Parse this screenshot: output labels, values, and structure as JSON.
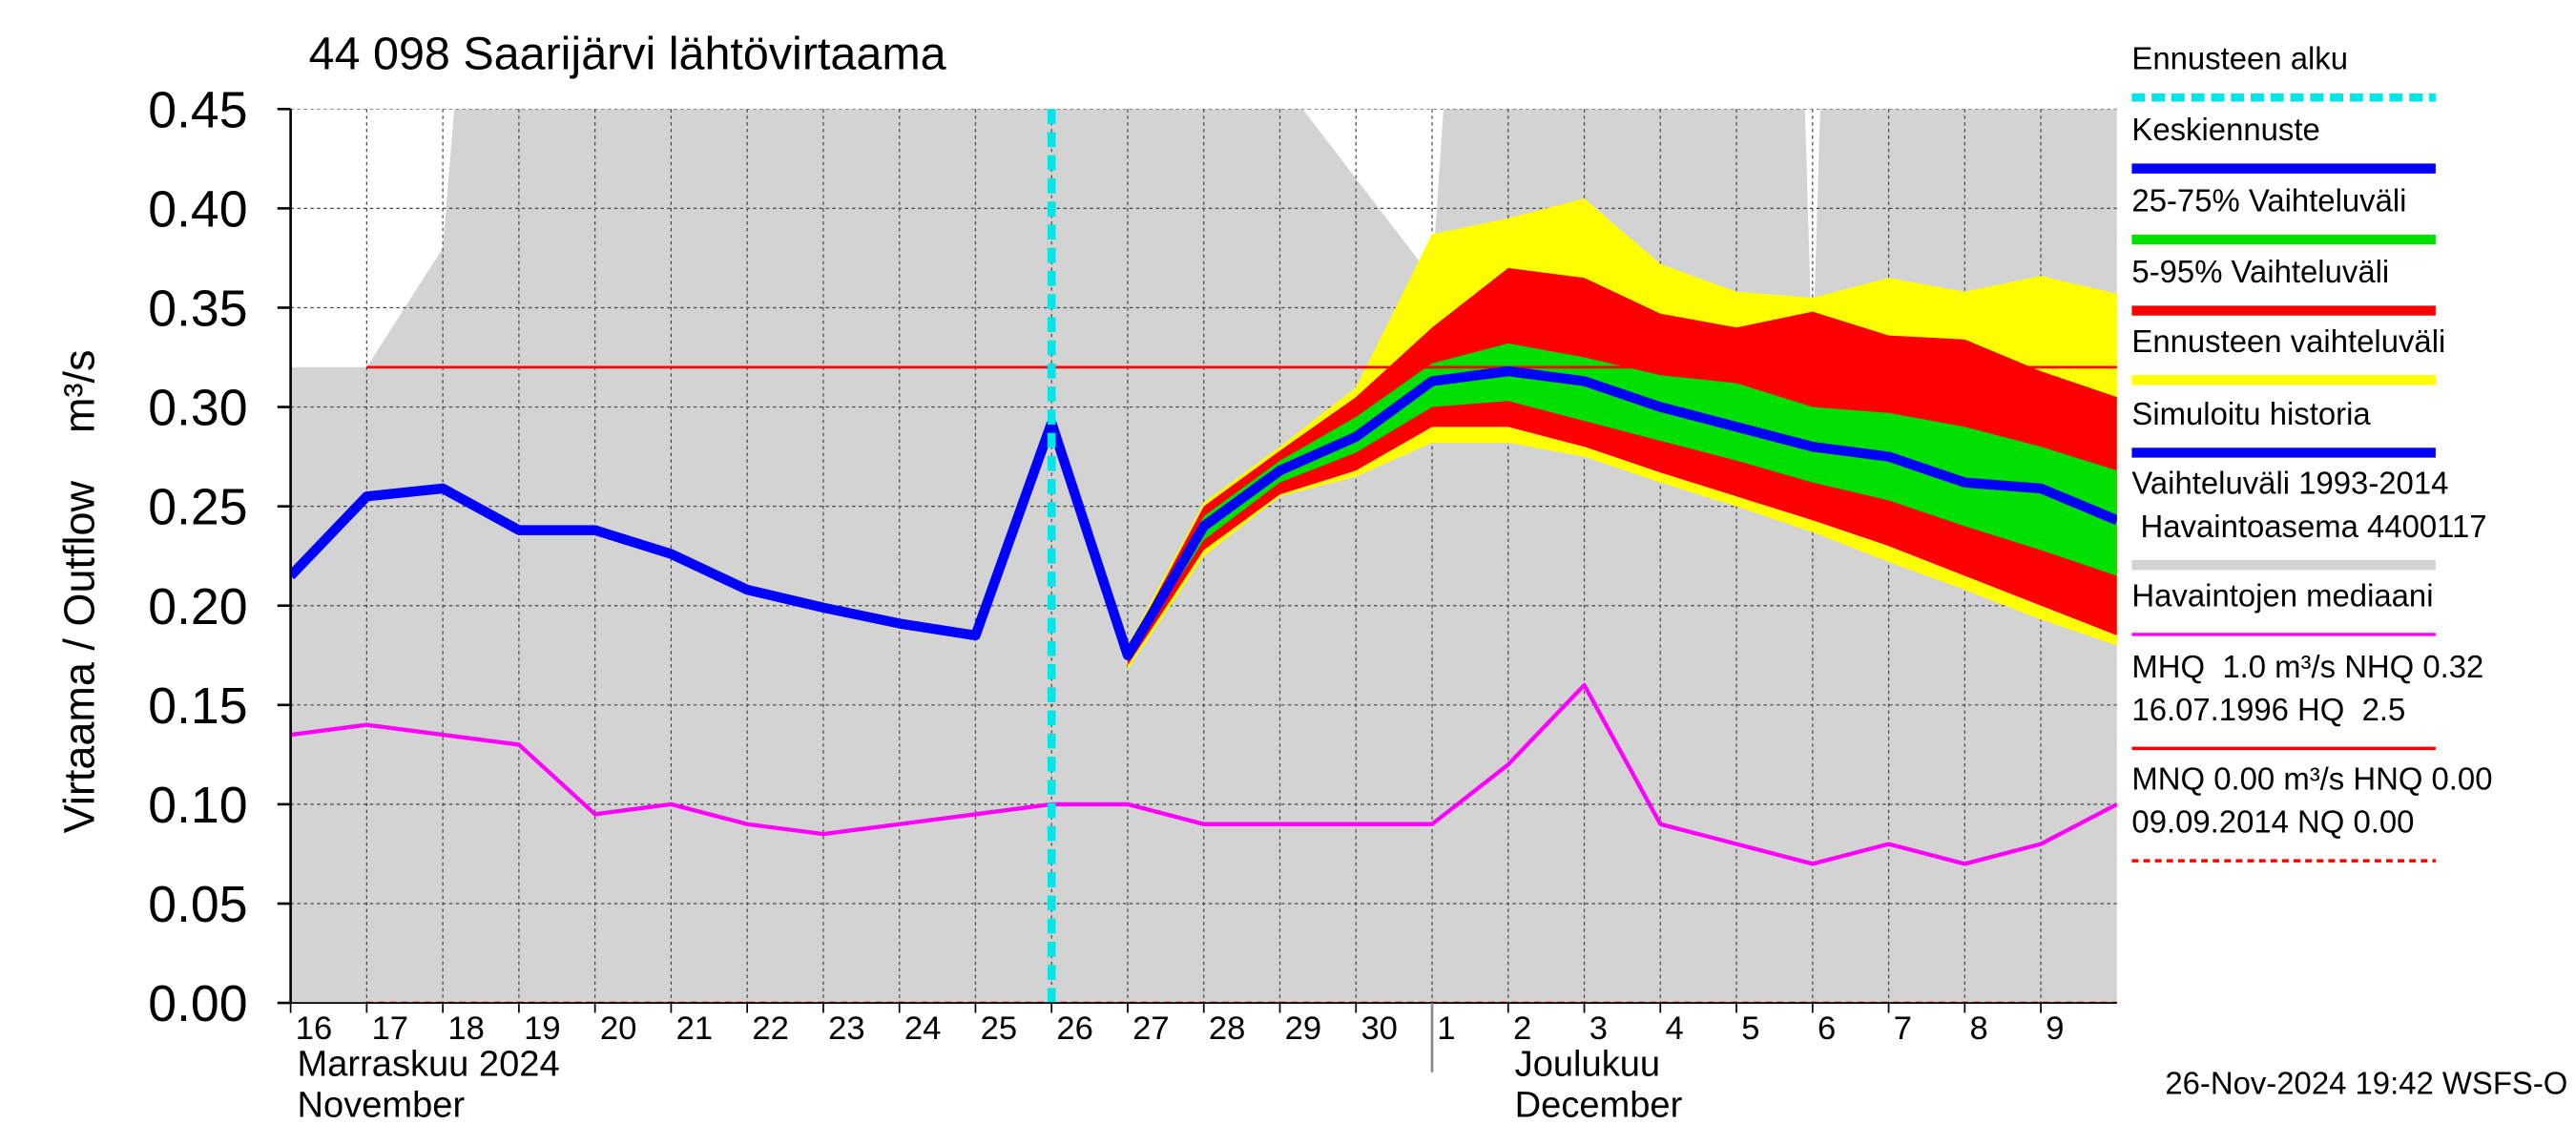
{
  "chart_data": {
    "type": "forecast",
    "title": "44 098 Saarijärvi lähtövirtaama",
    "y_label": "Virtaama / Outflow    m³/s",
    "footer": "26-Nov-2024 19:42 WSFS-O",
    "xlim": [
      0,
      24
    ],
    "xticks": [
      {
        "value": 0,
        "label": "16"
      },
      {
        "value": 1,
        "label": "17"
      },
      {
        "value": 2,
        "label": "18"
      },
      {
        "value": 3,
        "label": "19"
      },
      {
        "value": 4,
        "label": "20"
      },
      {
        "value": 5,
        "label": "21"
      },
      {
        "value": 6,
        "label": "22"
      },
      {
        "value": 7,
        "label": "23"
      },
      {
        "value": 8,
        "label": "24"
      },
      {
        "value": 9,
        "label": "25"
      },
      {
        "value": 10,
        "label": "26"
      },
      {
        "value": 11,
        "label": "27"
      },
      {
        "value": 12,
        "label": "28"
      },
      {
        "value": 13,
        "label": "29"
      },
      {
        "value": 14,
        "label": "30"
      },
      {
        "value": 15,
        "label": "1"
      },
      {
        "value": 16,
        "label": "2"
      },
      {
        "value": 17,
        "label": "3"
      },
      {
        "value": 18,
        "label": "4"
      },
      {
        "value": 19,
        "label": "5"
      },
      {
        "value": 20,
        "label": "6"
      },
      {
        "value": 21,
        "label": "7"
      },
      {
        "value": 22,
        "label": "8"
      },
      {
        "value": 23,
        "label": "9"
      }
    ],
    "month_labels": [
      {
        "value": 0,
        "label": [
          "Marraskuu 2024",
          "November"
        ]
      },
      {
        "value": 16,
        "label": [
          "Joulukuu",
          "December"
        ]
      }
    ],
    "month_separators": [
      15
    ],
    "ylim": [
      0,
      0.45
    ],
    "yticks": [
      {
        "value": 0,
        "label": "0.00"
      },
      {
        "value": 0.05,
        "label": "0.05"
      },
      {
        "value": 0.1,
        "label": "0.10"
      },
      {
        "value": 0.15,
        "label": "0.15"
      },
      {
        "value": 0.2,
        "label": "0.20"
      },
      {
        "value": 0.25,
        "label": "0.25"
      },
      {
        "value": 0.3,
        "label": "0.30"
      },
      {
        "value": 0.35,
        "label": "0.35"
      },
      {
        "value": 0.4,
        "label": "0.40"
      },
      {
        "value": 0.45,
        "label": "0.45"
      }
    ],
    "grid": true,
    "series": [
      {
        "kind": "vline",
        "name": [
          "Ennusteen alku"
        ],
        "color": "#00e5e5",
        "dashed": true,
        "value": 10
      },
      {
        "kind": "line",
        "name": [
          "Keskiennuste"
        ],
        "color": "#0000ff",
        "x": [
          10,
          11,
          12,
          13,
          14,
          15,
          16,
          17,
          18,
          19,
          20,
          21,
          22,
          23,
          24
        ],
        "values": [
          0.292,
          0.175,
          0.24,
          0.268,
          0.285,
          0.313,
          0.318,
          0.313,
          0.3,
          0.29,
          0.28,
          0.275,
          0.262,
          0.259,
          0.243
        ]
      },
      {
        "kind": "band",
        "name": [
          "25-75% Vaihteluväli"
        ],
        "color": "#00e000",
        "x": [
          11,
          12,
          13,
          14,
          15,
          16,
          17,
          18,
          19,
          20,
          21,
          22,
          23,
          24
        ],
        "high": [
          0.177,
          0.245,
          0.273,
          0.295,
          0.322,
          0.332,
          0.325,
          0.316,
          0.312,
          0.3,
          0.297,
          0.29,
          0.28,
          0.268
        ],
        "low": [
          0.174,
          0.233,
          0.262,
          0.277,
          0.3,
          0.303,
          0.293,
          0.283,
          0.273,
          0.262,
          0.253,
          0.24,
          0.228,
          0.215
        ]
      },
      {
        "kind": "band",
        "name": [
          "5-95% Vaihteluväli"
        ],
        "color": "#ff0000",
        "x": [
          11,
          12,
          13,
          14,
          15,
          16,
          17,
          18,
          19,
          20,
          21,
          22,
          23,
          24
        ],
        "high": [
          0.178,
          0.25,
          0.278,
          0.305,
          0.34,
          0.37,
          0.365,
          0.347,
          0.34,
          0.348,
          0.336,
          0.334,
          0.318,
          0.305
        ],
        "low": [
          0.17,
          0.228,
          0.256,
          0.268,
          0.29,
          0.29,
          0.28,
          0.267,
          0.255,
          0.243,
          0.23,
          0.215,
          0.2,
          0.185
        ]
      },
      {
        "kind": "band",
        "name": [
          "Ennusteen vaihteluväli"
        ],
        "color": "#ffff00",
        "x": [
          11,
          12,
          13,
          14,
          15,
          16,
          17,
          18,
          19,
          20,
          21,
          22,
          23,
          24
        ],
        "high": [
          0.18,
          0.252,
          0.28,
          0.31,
          0.387,
          0.395,
          0.405,
          0.372,
          0.358,
          0.355,
          0.365,
          0.358,
          0.366,
          0.357
        ],
        "low": [
          0.168,
          0.225,
          0.255,
          0.265,
          0.282,
          0.282,
          0.275,
          0.262,
          0.25,
          0.237,
          0.222,
          0.208,
          0.193,
          0.18
        ]
      },
      {
        "kind": "line",
        "name": [
          "Simuloitu historia"
        ],
        "color": "#0000ff",
        "x": [
          0,
          1,
          2,
          3,
          4,
          5,
          6,
          7,
          8,
          9,
          10
        ],
        "values": [
          0.215,
          0.255,
          0.259,
          0.238,
          0.238,
          0.226,
          0.208,
          0.199,
          0.191,
          0.185,
          0.292
        ]
      },
      {
        "kind": "area",
        "name": [
          "Vaihteluväli 1993-2014",
          " Havaintoasema 4400117"
        ],
        "color": "#d3d3d3",
        "x": [
          0,
          1,
          2,
          2.15,
          13.3,
          15,
          15.15,
          19.9,
          20,
          20.1,
          24
        ],
        "values": [
          0.32,
          0.32,
          0.38,
          0.45,
          0.45,
          0.365,
          0.45,
          0.45,
          0.32,
          0.45,
          0.45
        ]
      },
      {
        "kind": "line",
        "thin": true,
        "name": [
          "Havaintojen mediaani"
        ],
        "color": "#ff00ff",
        "x": [
          0,
          1,
          2,
          3,
          4,
          5,
          6,
          7,
          8,
          9,
          10,
          11,
          12,
          13,
          14,
          15,
          16,
          17,
          18,
          19,
          20,
          21,
          22,
          23,
          24
        ],
        "values": [
          0.135,
          0.14,
          0.135,
          0.13,
          0.095,
          0.1,
          0.09,
          0.085,
          0.09,
          0.095,
          0.1,
          0.1,
          0.09,
          0.09,
          0.09,
          0.09,
          0.12,
          0.16,
          0.09,
          0.08,
          0.07,
          0.08,
          0.07,
          0.08,
          0.1
        ]
      },
      {
        "kind": "hline",
        "name": [
          "MHQ  1.0 m³/s NHQ 0.32",
          "16.07.1996 HQ  2.5"
        ],
        "color": "#ff0000",
        "value": 0.32,
        "from": 1
      },
      {
        "kind": "hline",
        "dashed": true,
        "name": [
          "MNQ 0.00 m³/s HNQ 0.00",
          "09.09.2014 NQ 0.00"
        ],
        "color": "#ff0000",
        "value": 0,
        "from": 1
      }
    ]
  }
}
